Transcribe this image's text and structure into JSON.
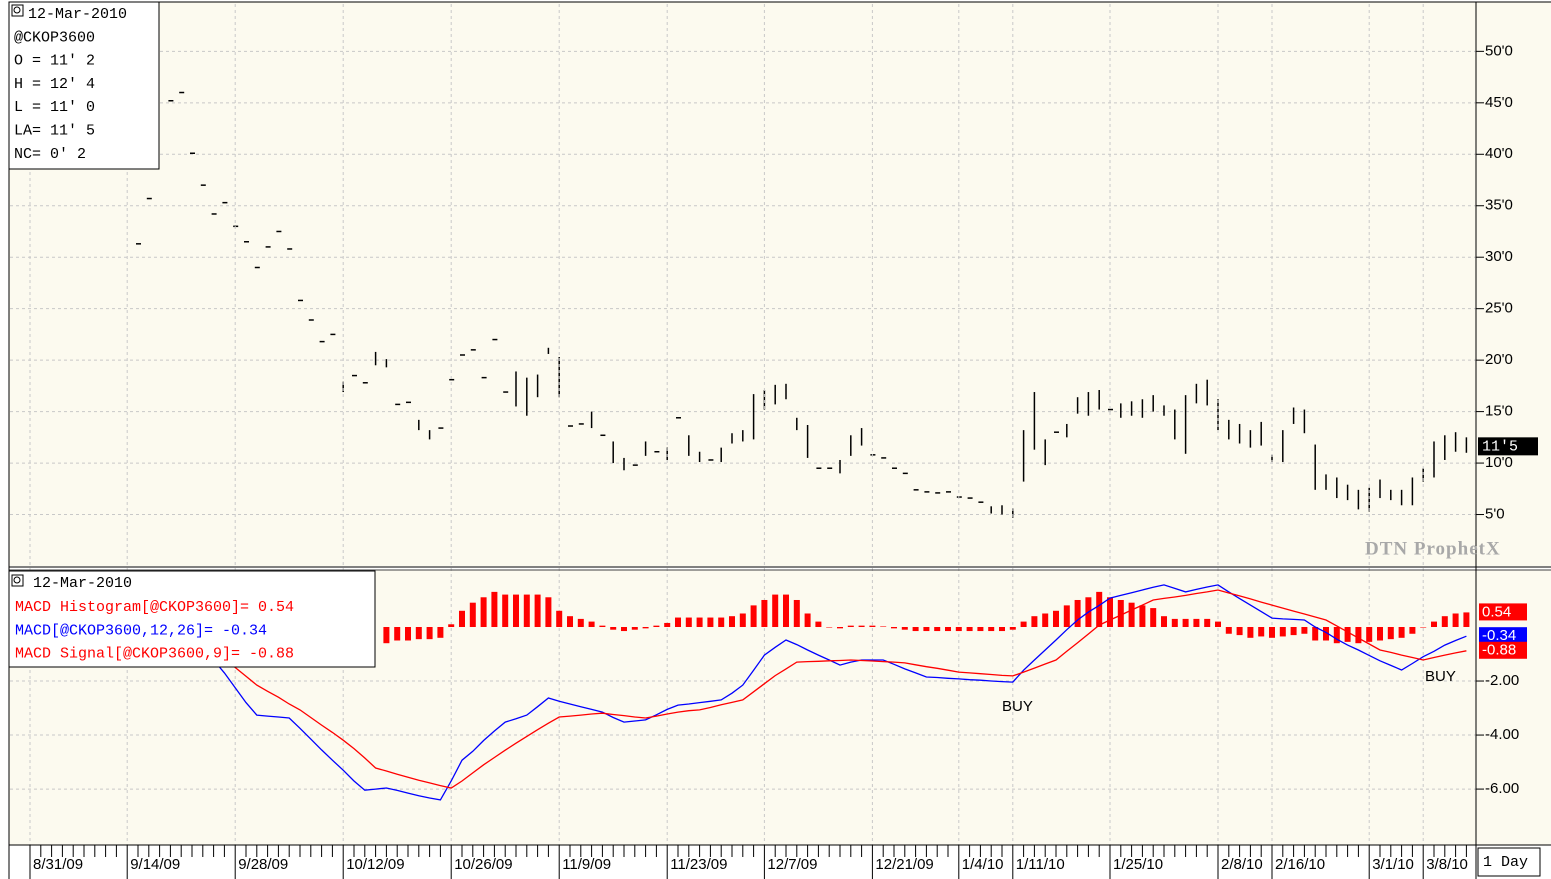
{
  "chart_data": [
    {
      "type": "ohlc",
      "color": "#000000",
      "grid": true,
      "info": [
        "12-Mar-2010",
        "@CKOP3600",
        "O = 11' 2",
        "H = 12' 4",
        "L = 11' 0",
        "LA= 11' 5",
        "NC= 0' 2"
      ],
      "watermark": "DTN ProphetX",
      "ylim": [
        0,
        54.6
      ],
      "yticks": [
        {
          "value": 5,
          "label": "5'0"
        },
        {
          "value": 10,
          "label": "10'0"
        },
        {
          "value": 15,
          "label": "15'0"
        },
        {
          "value": 20,
          "label": "20'0"
        },
        {
          "value": 25,
          "label": "25'0"
        },
        {
          "value": 30,
          "label": "30'0"
        },
        {
          "value": 35,
          "label": "35'0"
        },
        {
          "value": 40,
          "label": "40'0"
        },
        {
          "value": 45,
          "label": "45'0"
        },
        {
          "value": 50,
          "label": "50'0"
        }
      ],
      "last_price": {
        "value": 11.625,
        "label": "11'5"
      },
      "high": [
        null,
        null,
        null,
        null,
        null,
        null,
        null,
        null,
        null,
        null,
        31.3,
        35.7,
        null,
        45.2,
        46.0,
        40.1,
        37.0,
        34.2,
        35.3,
        33.0,
        31.5,
        29.0,
        31.0,
        32.5,
        30.8,
        25.8,
        23.9,
        21.8,
        22.5,
        17.9,
        18.5,
        17.8,
        20.8,
        20.1,
        15.7,
        15.9,
        14.2,
        13.2,
        13.4,
        18.1,
        20.5,
        21.0,
        18.3,
        22.0,
        16.9,
        18.9,
        18.3,
        18.6,
        21.2,
        20.3,
        13.6,
        13.8,
        15.0,
        12.7,
        12.1,
        10.5,
        9.8,
        12.1,
        11.1,
        11.5,
        14.4,
        12.7,
        11.1,
        10.3,
        11.5,
        12.9,
        13.2,
        16.7,
        17.1,
        17.6,
        17.7,
        14.4,
        13.7,
        9.5,
        9.5,
        10.3,
        12.7,
        13.4,
        10.8,
        10.5,
        9.5,
        9.0,
        7.4,
        7.2,
        7.1,
        7.2,
        6.7,
        6.6,
        6.2,
        5.8,
        5.9,
        5.6,
        13.2,
        16.9,
        12.3,
        13.0,
        13.8,
        16.4,
        16.9,
        17.1,
        15.2,
        15.8,
        16.0,
        16.2,
        16.6,
        15.6,
        15.2,
        16.6,
        17.7,
        18.1,
        16.2,
        14.2,
        13.8,
        13.2,
        14.0,
        10.8,
        13.2,
        15.4,
        15.2,
        11.8,
        8.9,
        8.6,
        7.9,
        7.4,
        7.6,
        8.4,
        7.4,
        7.4,
        8.6,
        9.5,
        12.1,
        12.7,
        13.0,
        12.5
      ],
      "low": [
        null,
        null,
        null,
        null,
        null,
        null,
        null,
        null,
        null,
        null,
        31.3,
        35.7,
        null,
        45.2,
        46.0,
        40.1,
        37.0,
        34.2,
        35.3,
        33.0,
        31.5,
        29.0,
        31.0,
        32.5,
        30.8,
        25.8,
        23.9,
        21.8,
        22.5,
        16.9,
        18.5,
        17.8,
        19.5,
        19.3,
        15.7,
        15.9,
        13.2,
        12.3,
        13.4,
        18.1,
        20.5,
        21.0,
        18.3,
        22.0,
        16.9,
        15.5,
        14.6,
        16.4,
        20.6,
        16.4,
        13.6,
        13.8,
        13.4,
        12.7,
        10.0,
        9.3,
        9.8,
        10.7,
        11.1,
        10.3,
        14.4,
        10.7,
        10.1,
        10.3,
        10.1,
        11.9,
        12.1,
        12.3,
        15.2,
        15.7,
        16.2,
        13.2,
        10.5,
        9.5,
        9.5,
        9.0,
        10.7,
        11.7,
        10.8,
        10.5,
        9.5,
        9.0,
        7.4,
        7.2,
        7.1,
        7.2,
        6.7,
        6.6,
        6.2,
        5.1,
        5.0,
        4.7,
        8.2,
        11.3,
        9.8,
        13.0,
        12.5,
        14.8,
        14.6,
        15.2,
        15.2,
        14.4,
        14.6,
        14.4,
        15.0,
        14.6,
        12.3,
        10.9,
        15.8,
        15.6,
        13.2,
        12.3,
        11.9,
        11.5,
        11.7,
        10.1,
        10.1,
        13.8,
        12.9,
        7.4,
        7.4,
        6.6,
        6.4,
        5.5,
        5.3,
        6.6,
        6.4,
        5.9,
        5.9,
        8.2,
        8.6,
        10.3,
        11.1,
        11.0
      ]
    },
    {
      "type": "macd",
      "grid": true,
      "date": "12-Mar-2010",
      "interval": "1 Day",
      "ylim": [
        -8.07,
        2.11
      ],
      "yticks": [
        {
          "value": -6,
          "label": "-6.00"
        },
        {
          "value": -4,
          "label": "-4.00"
        },
        {
          "value": -2,
          "label": "-2.00"
        }
      ],
      "annotations": [
        {
          "text": "BUY"
        },
        {
          "text": "BUY"
        }
      ],
      "categories": [
        "8/31/09",
        null,
        null,
        null,
        null,
        null,
        null,
        null,
        null,
        "9/14/09",
        null,
        null,
        null,
        null,
        null,
        null,
        null,
        null,
        null,
        "9/28/09",
        null,
        null,
        null,
        null,
        null,
        null,
        null,
        null,
        null,
        "10/12/09",
        null,
        null,
        null,
        null,
        null,
        null,
        null,
        null,
        null,
        "10/26/09",
        null,
        null,
        null,
        null,
        null,
        null,
        null,
        null,
        null,
        "11/9/09",
        null,
        null,
        null,
        null,
        null,
        null,
        null,
        null,
        null,
        "11/23/09",
        null,
        null,
        null,
        null,
        null,
        null,
        null,
        null,
        "12/7/09",
        null,
        null,
        null,
        null,
        null,
        null,
        null,
        null,
        null,
        "12/21/09",
        null,
        null,
        null,
        null,
        null,
        null,
        null,
        "1/4/10",
        null,
        null,
        null,
        null,
        "1/11/10",
        null,
        null,
        null,
        null,
        null,
        null,
        null,
        null,
        "1/25/10",
        null,
        null,
        null,
        null,
        null,
        null,
        null,
        null,
        null,
        "2/8/10",
        null,
        null,
        null,
        null,
        "2/16/10",
        null,
        null,
        null,
        null,
        null,
        null,
        null,
        null,
        "3/1/10",
        null,
        null,
        null,
        null,
        "3/8/10",
        null,
        null,
        null,
        null
      ],
      "series": [
        {
          "name": "MACD Histogram[@CKOP3600]= 0.54",
          "style": "bars",
          "color": "#ff0000",
          "last_label": "0.54",
          "values": [
            null,
            null,
            null,
            null,
            null,
            null,
            null,
            null,
            null,
            null,
            null,
            null,
            null,
            null,
            null,
            null,
            null,
            null,
            null,
            null,
            null,
            null,
            null,
            null,
            null,
            null,
            null,
            null,
            null,
            null,
            null,
            null,
            null,
            -0.6,
            -0.5,
            -0.5,
            -0.45,
            -0.45,
            -0.4,
            0.1,
            0.6,
            0.9,
            1.1,
            1.3,
            1.2,
            1.2,
            1.2,
            1.2,
            1.1,
            0.6,
            0.4,
            0.3,
            0.2,
            0.05,
            -0.1,
            -0.15,
            -0.1,
            -0.05,
            0.05,
            0.15,
            0.35,
            0.35,
            0.35,
            0.35,
            0.35,
            0.4,
            0.5,
            0.8,
            1.0,
            1.2,
            1.2,
            1.0,
            0.5,
            0.2,
            0,
            -0.05,
            0.05,
            0.05,
            0.05,
            0.02,
            -0.05,
            -0.1,
            -0.15,
            -0.15,
            -0.15,
            -0.15,
            -0.15,
            -0.15,
            -0.15,
            -0.15,
            -0.15,
            -0.1,
            0.2,
            0.4,
            0.5,
            0.6,
            0.8,
            1.0,
            1.1,
            1.3,
            1.1,
            1.0,
            0.9,
            0.8,
            0.7,
            0.4,
            0.3,
            0.3,
            0.3,
            0.3,
            0.2,
            -0.25,
            -0.3,
            -0.4,
            -0.35,
            -0.4,
            -0.35,
            -0.3,
            -0.25,
            -0.5,
            -0.5,
            -0.6,
            -0.55,
            -0.6,
            -0.55,
            -0.5,
            -0.45,
            -0.4,
            -0.25,
            0,
            0.2,
            0.4,
            0.5,
            0.54
          ]
        },
        {
          "name": "MACD[@CKOP3600,12,26]= -0.34",
          "style": "line",
          "color": "#0000ff",
          "last_label": "-0.34",
          "values": [
            null,
            null,
            null,
            null,
            null,
            null,
            null,
            null,
            null,
            null,
            null,
            null,
            null,
            null,
            null,
            null,
            -1.0,
            -1.22,
            -1.7,
            -2.25,
            -2.8,
            -3.26,
            -3.3,
            -3.33,
            -3.37,
            -3.75,
            -4.15,
            -4.55,
            -4.93,
            -5.3,
            -5.7,
            -6.04,
            -6.0,
            -5.96,
            -6.05,
            -6.15,
            -6.25,
            -6.33,
            -6.4,
            -5.7,
            -4.93,
            -4.6,
            -4.2,
            -3.85,
            -3.52,
            -3.4,
            -3.26,
            -2.95,
            -2.63,
            -2.75,
            -2.85,
            -2.95,
            -3.05,
            -3.15,
            -3.35,
            -3.52,
            -3.48,
            -3.44,
            -3.25,
            -3.05,
            -2.89,
            -2.85,
            -2.8,
            -2.75,
            -2.7,
            -2.45,
            -2.15,
            -1.6,
            -1.04,
            -0.75,
            -0.48,
            -0.65,
            -0.85,
            -1.04,
            -1.22,
            -1.41,
            -1.3,
            -1.22,
            -1.22,
            -1.22,
            -1.38,
            -1.55,
            -1.7,
            -1.85,
            -1.87,
            -1.9,
            -1.92,
            -1.95,
            -1.97,
            -2.0,
            -2.02,
            -2.04,
            -1.6,
            -1.22,
            -0.85,
            -0.48,
            -0.1,
            0.26,
            0.55,
            0.8,
            1.07,
            1.17,
            1.27,
            1.37,
            1.47,
            1.56,
            1.43,
            1.3,
            1.39,
            1.48,
            1.56,
            1.3,
            1.05,
            0.81,
            0.57,
            0.33,
            0.3,
            0.28,
            0.26,
            0,
            -0.2,
            -0.45,
            -0.67,
            -0.85,
            -1.05,
            -1.25,
            -1.42,
            -1.59,
            -1.35,
            -1.1,
            -0.9,
            -0.67,
            -0.5,
            -0.34
          ]
        },
        {
          "name": "MACD Signal[@CKOP3600,9]= -0.88",
          "style": "line",
          "color": "#ff0000",
          "last_label": "-0.88",
          "values": [
            null,
            null,
            null,
            null,
            null,
            null,
            null,
            null,
            null,
            null,
            null,
            null,
            null,
            null,
            null,
            null,
            -0.6,
            -0.85,
            -1.17,
            -1.5,
            -1.82,
            -2.15,
            -2.38,
            -2.6,
            -2.85,
            -3.07,
            -3.35,
            -3.63,
            -3.9,
            -4.19,
            -4.5,
            -4.85,
            -5.22,
            -5.33,
            -5.45,
            -5.56,
            -5.67,
            -5.77,
            -5.87,
            -5.96,
            -5.7,
            -5.4,
            -5.1,
            -4.83,
            -4.56,
            -4.3,
            -4.05,
            -3.8,
            -3.56,
            -3.33,
            -3.3,
            -3.26,
            -3.22,
            -3.19,
            -3.24,
            -3.28,
            -3.33,
            -3.37,
            -3.3,
            -3.22,
            -3.15,
            -3.1,
            -3.07,
            -2.98,
            -2.88,
            -2.79,
            -2.7,
            -2.4,
            -2.1,
            -1.8,
            -1.55,
            -1.3,
            -1.28,
            -1.27,
            -1.25,
            -1.24,
            -1.22,
            -1.24,
            -1.26,
            -1.28,
            -1.3,
            -1.33,
            -1.4,
            -1.47,
            -1.53,
            -1.6,
            -1.67,
            -1.7,
            -1.73,
            -1.76,
            -1.79,
            -1.81,
            -1.67,
            -1.52,
            -1.37,
            -1.22,
            -0.9,
            -0.58,
            -0.26,
            0.07,
            0.26,
            0.44,
            0.63,
            0.81,
            1.0,
            1.06,
            1.11,
            1.17,
            1.24,
            1.3,
            1.37,
            1.26,
            1.15,
            1.04,
            0.92,
            0.81,
            0.7,
            0.59,
            0.48,
            0.37,
            0.26,
            0.04,
            -0.18,
            -0.41,
            -0.63,
            -0.85,
            -0.94,
            -1.04,
            -1.13,
            -1.22,
            -1.13,
            -1.04,
            -0.96,
            -0.88
          ]
        }
      ]
    }
  ]
}
